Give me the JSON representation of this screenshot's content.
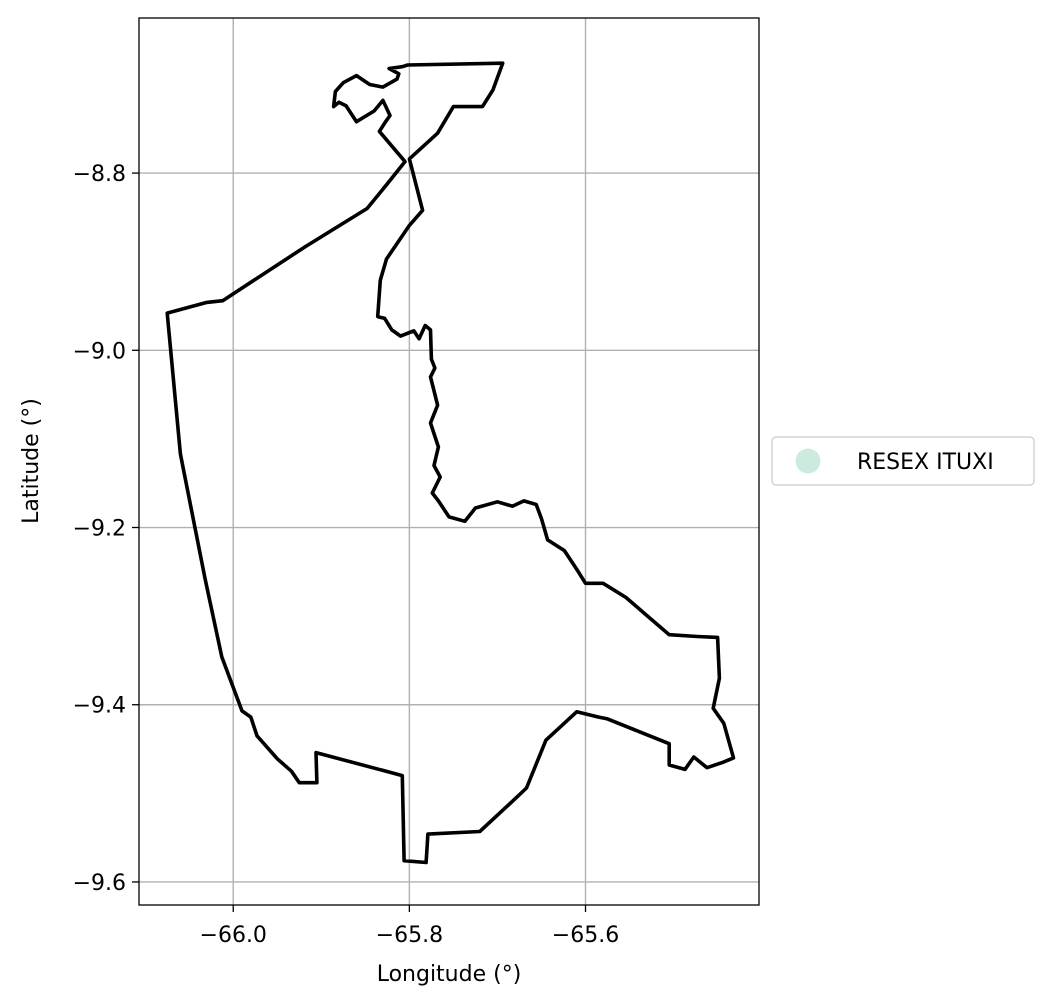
{
  "chart_data": {
    "type": "map",
    "xlabel": "Longitude (°)",
    "ylabel": "Latitude (°)",
    "xlim": [
      -66.107,
      -65.403
    ],
    "ylim": [
      -9.626,
      -8.625
    ],
    "xticks": [
      -66.0,
      -65.8,
      -65.6
    ],
    "xtick_labels": [
      "−66.0",
      "−65.8",
      "−65.6"
    ],
    "yticks": [
      -8.8,
      -9.0,
      -9.2,
      -9.4,
      -9.6
    ],
    "ytick_labels": [
      "−8.8",
      "−9.0",
      "−9.2",
      "−9.4",
      "−9.6"
    ],
    "grid": true,
    "legend": {
      "placement": "right",
      "entries": [
        {
          "label": "RESEX ITUXI",
          "color": "#cdeadf"
        }
      ]
    },
    "outline_color": "#000000",
    "boundary": [
      [
        -65.802,
        -8.678
      ],
      [
        -65.694,
        -8.676
      ],
      [
        -65.705,
        -8.706
      ],
      [
        -65.717,
        -8.725
      ],
      [
        -65.75,
        -8.725
      ],
      [
        -65.768,
        -8.755
      ],
      [
        -65.8,
        -8.784
      ],
      [
        -65.785,
        -8.842
      ],
      [
        -65.8,
        -8.859
      ],
      [
        -65.826,
        -8.897
      ],
      [
        -65.833,
        -8.921
      ],
      [
        -65.836,
        -8.962
      ],
      [
        -65.828,
        -8.964
      ],
      [
        -65.82,
        -8.977
      ],
      [
        -65.81,
        -8.984
      ],
      [
        -65.795,
        -8.978
      ],
      [
        -65.789,
        -8.987
      ],
      [
        -65.782,
        -8.972
      ],
      [
        -65.776,
        -8.977
      ],
      [
        -65.775,
        -9.01
      ],
      [
        -65.771,
        -9.02
      ],
      [
        -65.776,
        -9.03
      ],
      [
        -65.768,
        -9.062
      ],
      [
        -65.776,
        -9.082
      ],
      [
        -65.767,
        -9.109
      ],
      [
        -65.772,
        -9.13
      ],
      [
        -65.765,
        -9.143
      ],
      [
        -65.774,
        -9.161
      ],
      [
        -65.767,
        -9.17
      ],
      [
        -65.755,
        -9.188
      ],
      [
        -65.737,
        -9.193
      ],
      [
        -65.725,
        -9.178
      ],
      [
        -65.7,
        -9.171
      ],
      [
        -65.683,
        -9.176
      ],
      [
        -65.67,
        -9.17
      ],
      [
        -65.656,
        -9.174
      ],
      [
        -65.65,
        -9.19
      ],
      [
        -65.643,
        -9.214
      ],
      [
        -65.624,
        -9.226
      ],
      [
        -65.61,
        -9.247
      ],
      [
        -65.6,
        -9.263
      ],
      [
        -65.58,
        -9.263
      ],
      [
        -65.554,
        -9.279
      ],
      [
        -65.533,
        -9.297
      ],
      [
        -65.505,
        -9.321
      ],
      [
        -65.473,
        -9.323
      ],
      [
        -65.45,
        -9.324
      ],
      [
        -65.448,
        -9.37
      ],
      [
        -65.455,
        -9.404
      ],
      [
        -65.443,
        -9.421
      ],
      [
        -65.432,
        -9.46
      ],
      [
        -65.444,
        -9.465
      ],
      [
        -65.462,
        -9.471
      ],
      [
        -65.477,
        -9.459
      ],
      [
        -65.487,
        -9.473
      ],
      [
        -65.505,
        -9.468
      ],
      [
        -65.505,
        -9.444
      ],
      [
        -65.54,
        -9.43
      ],
      [
        -65.575,
        -9.416
      ],
      [
        -65.585,
        -9.414
      ],
      [
        -65.61,
        -9.408
      ],
      [
        -65.645,
        -9.44
      ],
      [
        -65.667,
        -9.494
      ],
      [
        -65.683,
        -9.509
      ],
      [
        -65.72,
        -9.543
      ],
      [
        -65.779,
        -9.546
      ],
      [
        -65.781,
        -9.578
      ],
      [
        -65.806,
        -9.576
      ],
      [
        -65.808,
        -9.48
      ],
      [
        -65.906,
        -9.454
      ],
      [
        -65.905,
        -9.488
      ],
      [
        -65.925,
        -9.488
      ],
      [
        -65.934,
        -9.475
      ],
      [
        -65.95,
        -9.461
      ],
      [
        -65.973,
        -9.435
      ],
      [
        -65.98,
        -9.414
      ],
      [
        -65.99,
        -9.407
      ],
      [
        -66.013,
        -9.346
      ],
      [
        -66.032,
        -9.258
      ],
      [
        -66.06,
        -9.117
      ],
      [
        -66.075,
        -8.958
      ],
      [
        -66.03,
        -8.946
      ],
      [
        -66.012,
        -8.944
      ],
      [
        -65.918,
        -8.883
      ],
      [
        -65.848,
        -8.84
      ],
      [
        -65.825,
        -8.812
      ],
      [
        -65.805,
        -8.787
      ],
      [
        -65.834,
        -8.753
      ],
      [
        -65.827,
        -8.742
      ],
      [
        -65.822,
        -8.735
      ],
      [
        -65.83,
        -8.718
      ],
      [
        -65.84,
        -8.73
      ],
      [
        -65.86,
        -8.742
      ],
      [
        -65.872,
        -8.724
      ],
      [
        -65.88,
        -8.72
      ],
      [
        -65.886,
        -8.725
      ],
      [
        -65.884,
        -8.708
      ],
      [
        -65.875,
        -8.698
      ],
      [
        -65.86,
        -8.69
      ],
      [
        -65.845,
        -8.7
      ],
      [
        -65.83,
        -8.703
      ],
      [
        -65.814,
        -8.694
      ],
      [
        -65.812,
        -8.688
      ],
      [
        -65.823,
        -8.682
      ],
      [
        -65.808,
        -8.68
      ],
      [
        -65.802,
        -8.678
      ]
    ]
  }
}
